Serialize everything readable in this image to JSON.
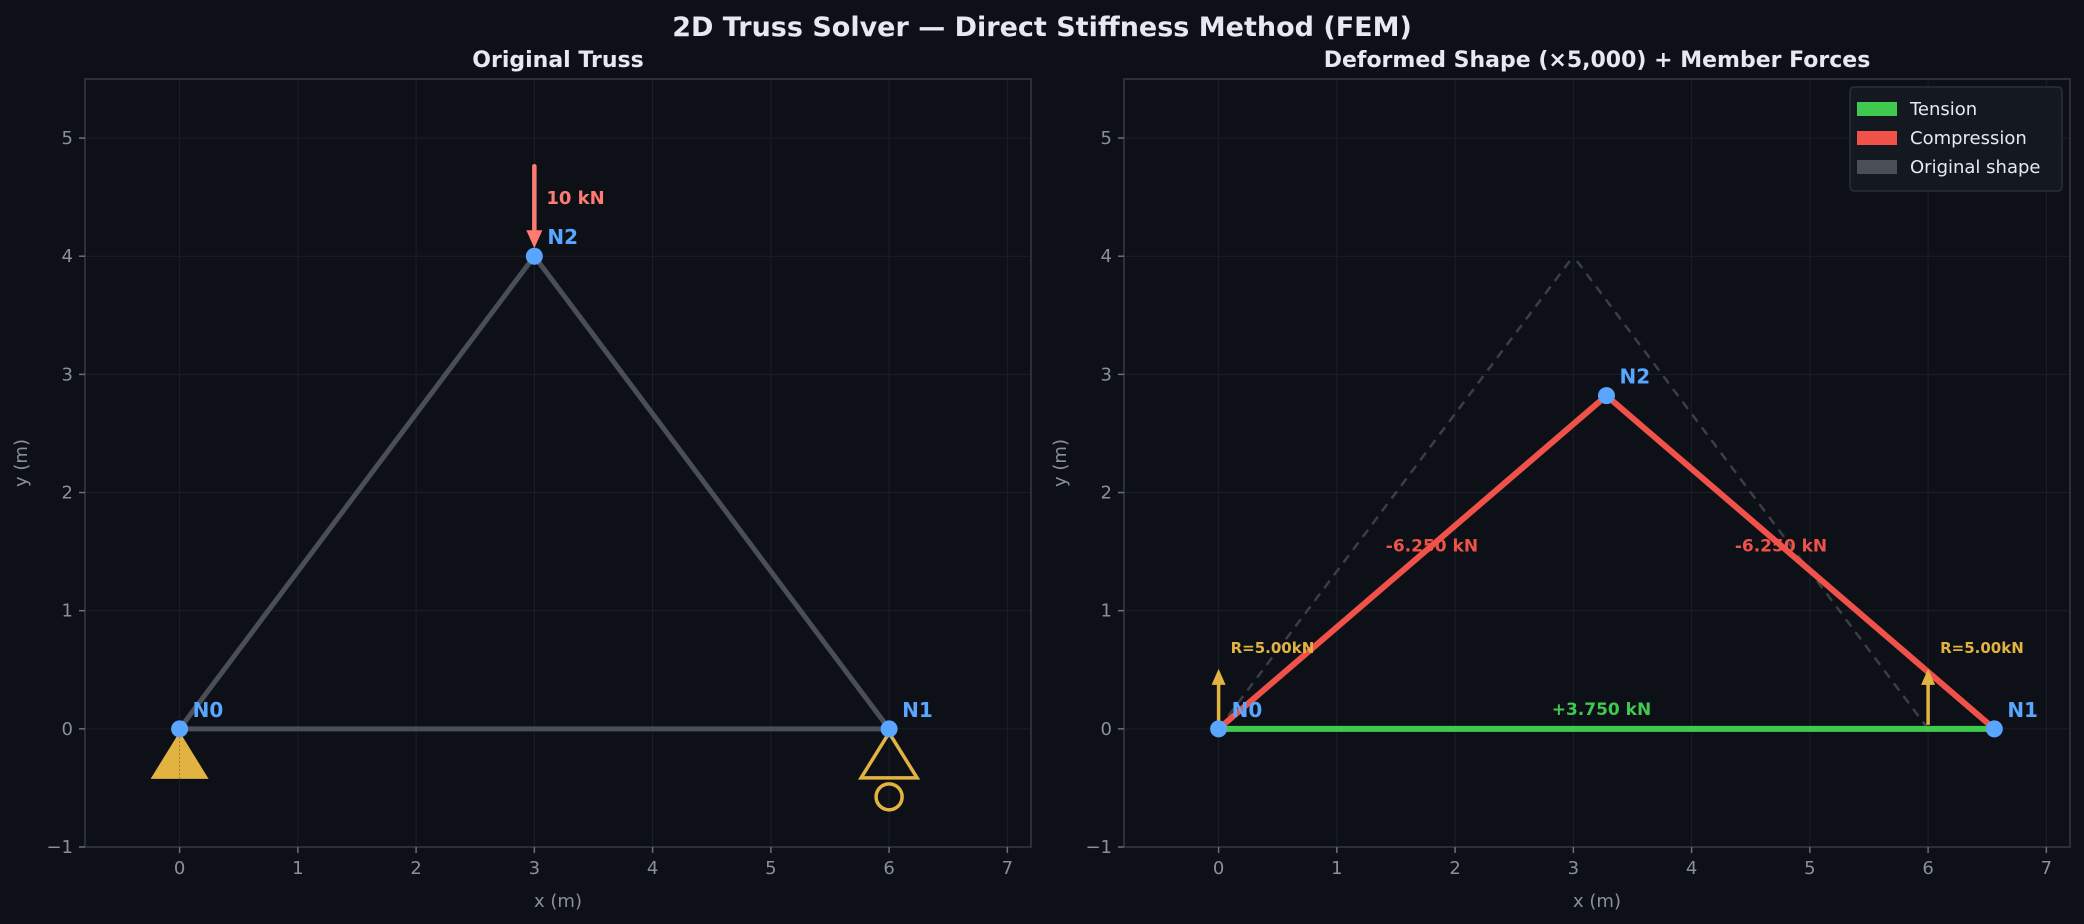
{
  "figure": {
    "title": "2D Truss Solver — Direct Stiffness Method (FEM)"
  },
  "colors": {
    "background": "#0d1017",
    "panel": "#0d1017",
    "axis": "#2a2f38",
    "grid": "#1b1f27",
    "member_original": "#4a4e57",
    "node": "#58a6ff",
    "support": "#e3b341",
    "load": "#ff7b72",
    "tension": "#3fca4f",
    "compression": "#f0524a",
    "ghost": "#3a3e47"
  },
  "chart_data": [
    {
      "type": "line",
      "title": "Original Truss",
      "xlabel": "x (m)",
      "ylabel": "y (m)",
      "xlim": [
        -0.8,
        7.2
      ],
      "ylim": [
        -1,
        5.5
      ],
      "xticks": [
        0,
        1,
        2,
        3,
        4,
        5,
        6,
        7
      ],
      "yticks": [
        -1,
        0,
        1,
        2,
        3,
        4,
        5
      ],
      "grid": true,
      "nodes": [
        {
          "name": "N0",
          "x": 0,
          "y": 0,
          "support": "pin"
        },
        {
          "name": "N1",
          "x": 6,
          "y": 0,
          "support": "roller"
        },
        {
          "name": "N2",
          "x": 3,
          "y": 4,
          "support": "none"
        }
      ],
      "members": [
        {
          "from": 0,
          "to": 1
        },
        {
          "from": 0,
          "to": 2
        },
        {
          "from": 1,
          "to": 2
        }
      ],
      "loads": [
        {
          "node": 2,
          "fx": 0,
          "fy": -10,
          "label": "10 kN"
        }
      ]
    },
    {
      "type": "line",
      "title": "Deformed Shape (×5,000) + Member Forces",
      "xlabel": "x (m)",
      "ylabel": "y (m)",
      "xlim": [
        -0.8,
        7.2
      ],
      "ylim": [
        -1,
        5.5
      ],
      "xticks": [
        0,
        1,
        2,
        3,
        4,
        5,
        6,
        7
      ],
      "yticks": [
        -1,
        0,
        1,
        2,
        3,
        4,
        5
      ],
      "grid": true,
      "legend_position": "top-right",
      "legend": [
        "Tension",
        "Compression",
        "Original shape"
      ],
      "original_nodes": [
        {
          "x": 0,
          "y": 0
        },
        {
          "x": 6,
          "y": 0
        },
        {
          "x": 3,
          "y": 4
        }
      ],
      "nodes": [
        {
          "name": "N0",
          "x": 0,
          "y": 0
        },
        {
          "name": "N1",
          "x": 6.56,
          "y": 0
        },
        {
          "name": "N2",
          "x": 3.28,
          "y": 2.82
        }
      ],
      "members": [
        {
          "from": 0,
          "to": 1,
          "force": 3.75,
          "label": "+3.750 kN",
          "state": "tension"
        },
        {
          "from": 0,
          "to": 2,
          "force": -6.25,
          "label": "-6.250 kN",
          "state": "compression"
        },
        {
          "from": 1,
          "to": 2,
          "force": -6.25,
          "label": "-6.250 kN",
          "state": "compression"
        }
      ],
      "reactions": [
        {
          "x": 0,
          "label": "R=5.00kN"
        },
        {
          "x": 6,
          "label": "R=5.00kN"
        }
      ]
    }
  ]
}
